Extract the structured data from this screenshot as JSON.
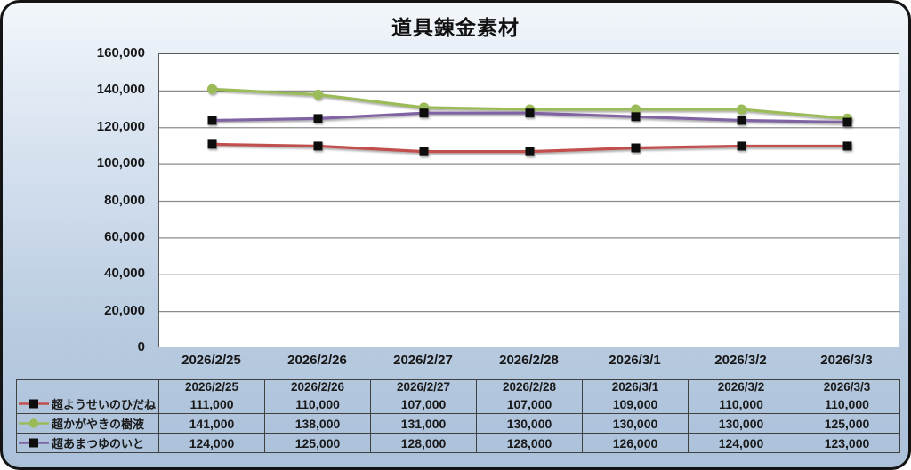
{
  "chart_data": {
    "type": "line",
    "title": "道具錬金素材",
    "categories": [
      "2026/2/25",
      "2026/2/26",
      "2026/2/27",
      "2026/2/28",
      "2026/3/1",
      "2026/3/2",
      "2026/3/3"
    ],
    "series": [
      {
        "name": "超ようせいのひだね",
        "line_color": "#c0504d",
        "marker": "square",
        "marker_color": "#0d0d0d",
        "values": [
          111000,
          110000,
          107000,
          107000,
          109000,
          110000,
          110000
        ]
      },
      {
        "name": "超かがやきの樹液",
        "line_color": "#9bbb59",
        "marker": "circle",
        "marker_color": "#9bbb59",
        "values": [
          141000,
          138000,
          131000,
          130000,
          130000,
          130000,
          125000
        ]
      },
      {
        "name": "超あまつゆのいと",
        "line_color": "#8064a2",
        "marker": "square",
        "marker_color": "#0d0d0d",
        "values": [
          124000,
          125000,
          128000,
          128000,
          126000,
          124000,
          123000
        ]
      }
    ],
    "ylim": [
      0,
      160000
    ],
    "ytick_step": 20000,
    "ytick_labels": [
      "160,000",
      "140,000",
      "120,000",
      "100,000",
      "80,000",
      "60,000",
      "40,000",
      "20,000",
      "0"
    ],
    "grid": true,
    "gridline_color": "#8c8c8c",
    "legend_position": "table-left",
    "table": {
      "rows": [
        {
          "label": "超ようせいのひだね",
          "values": [
            "111,000",
            "110,000",
            "107,000",
            "107,000",
            "109,000",
            "110,000",
            "110,000"
          ]
        },
        {
          "label": "超かがやきの樹液",
          "values": [
            "141,000",
            "138,000",
            "131,000",
            "130,000",
            "130,000",
            "130,000",
            "125,000"
          ]
        },
        {
          "label": "超あまつゆのいと",
          "values": [
            "124,000",
            "125,000",
            "128,000",
            "128,000",
            "126,000",
            "124,000",
            "123,000"
          ]
        }
      ]
    }
  }
}
